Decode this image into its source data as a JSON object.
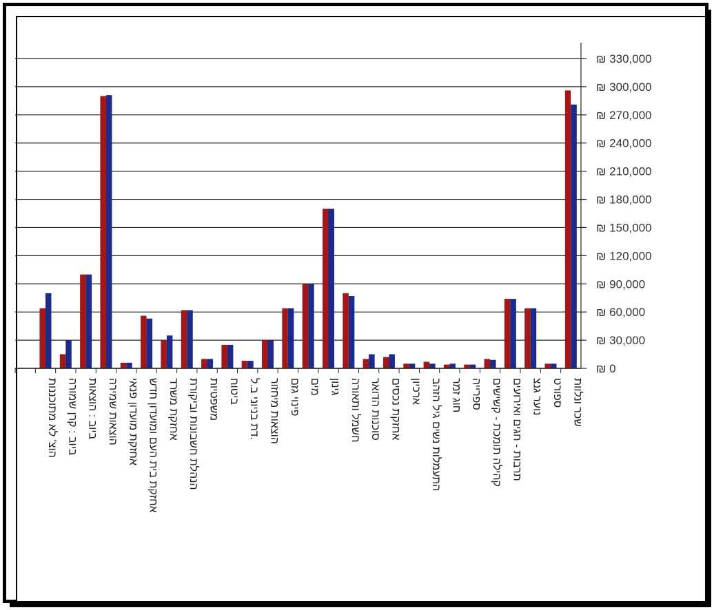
{
  "chart_data": {
    "type": "bar",
    "title": "",
    "xlabel": "",
    "ylabel": "",
    "ylim": [
      0,
      330000
    ],
    "yticks": [
      "₪ 330,000",
      "₪ 300,000",
      "₪ 270,000",
      "₪ 240,000",
      "₪ 210,000",
      "₪ 180,000",
      "₪ 150,000",
      "₪ 120,000",
      "₪ 90,000",
      "₪ 60,000",
      "₪ 30,000",
      "₪ 0"
    ],
    "ytick_values": [
      330000,
      300000,
      270000,
      240000,
      210000,
      180000,
      150000,
      120000,
      90000,
      60000,
      30000,
      0
    ],
    "grid": true,
    "legend": "none",
    "colors": [
      "#a01818",
      "#1c2a8c"
    ],
    "categories": [
      "שכר ונלוות",
      "ספורט",
      "נוער גנצ",
      "תרבות - חגים ואירועים",
      "קהילה תומכת - קשישים",
      "ספרייה",
      "חוג זמר",
      "התעמלות נשים גיל הזהב",
      "ארכיון",
      "אחזקת נכסים",
      "סוכנות הדואר",
      "חשמל ותאורה",
      "גינון",
      "מים",
      "פינוי גזם",
      "הוצאות מיחזור",
      "דת בניוני ב.ל.",
      "ביטוח",
      "משפטיות",
      "הנהלת חשבונות וביקורת",
      "אחזקת משרד",
      "אחזקת בית העם ומועדון חדש",
      "אחזקת מועדון פנאי",
      "הוצאות שמירה",
      "ביוב : הוצאות",
      "ביוב : קרן שמורה",
      "הוצ' לא מתוכננות",
      ""
    ],
    "series": [
      {
        "values": [
          296000,
          5000,
          64000,
          74000,
          10000,
          4000,
          4000,
          7000,
          5000,
          12000,
          10000,
          80000,
          170000,
          90000,
          64000,
          30000,
          8000,
          25000,
          10000,
          62000,
          30000,
          56000,
          6000,
          290000,
          100000,
          15000,
          64000,
          0
        ]
      },
      {
        "values": [
          281000,
          5000,
          64000,
          74000,
          9000,
          4000,
          5000,
          5000,
          5000,
          15000,
          15000,
          77000,
          170000,
          90000,
          64000,
          30000,
          8000,
          25000,
          10000,
          62000,
          35000,
          53000,
          6000,
          291000,
          100000,
          30000,
          80000,
          0
        ]
      }
    ]
  }
}
